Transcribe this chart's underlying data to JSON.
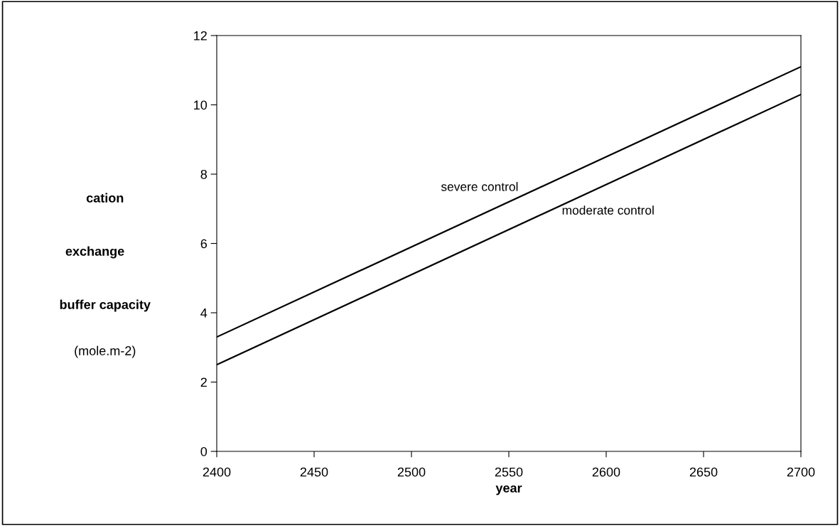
{
  "chart_data": {
    "type": "line",
    "xlabel": "year",
    "ylabel": "cation\nexchange\nbuffer capacity\n(mole.m-2)",
    "x": [
      2400,
      2700
    ],
    "series": [
      {
        "name": "severe control",
        "color": "#000000",
        "values": [
          3.3,
          11.1
        ]
      },
      {
        "name": "moderate control",
        "color": "#000000",
        "values": [
          2.5,
          10.3
        ]
      }
    ],
    "xlim": [
      2400,
      2700
    ],
    "xticks": [
      2400,
      2450,
      2500,
      2550,
      2600,
      2650,
      2700
    ],
    "ylim": [
      0,
      12
    ],
    "yticks": [
      0,
      2,
      4,
      6,
      8,
      10,
      12
    ],
    "grid": false,
    "legend": false,
    "marker": "none",
    "line_style": "solid"
  }
}
